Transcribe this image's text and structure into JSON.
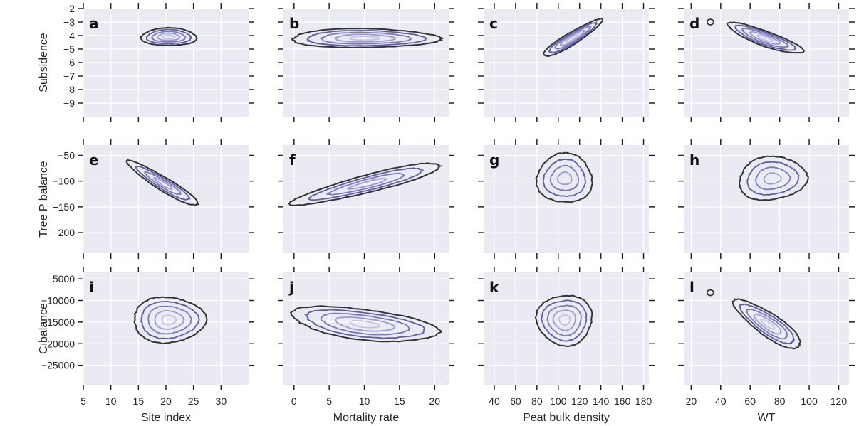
{
  "chart_data": {
    "type": "kde_contour_grid",
    "colors": {
      "background": "#eaeaf2",
      "grid": "#ffffff",
      "outer_contour": "#333333",
      "inner_contours": [
        "#5e5ca8",
        "#7b79bd",
        "#9e9bd0",
        "#c4c2e3"
      ]
    },
    "x_axes": [
      {
        "label": "Site index",
        "lim": [
          5,
          35
        ],
        "ticks": [
          5,
          10,
          15,
          20,
          25,
          30
        ],
        "tick_labels": [
          "5",
          "10",
          "15",
          "20",
          "25",
          "30"
        ]
      },
      {
        "label": "Mortality rate",
        "lim": [
          -1.5,
          22
        ],
        "ticks": [
          0,
          5,
          10,
          15,
          20
        ],
        "tick_labels": [
          "0",
          "5",
          "10",
          "15",
          "20"
        ]
      },
      {
        "label": "Peat bulk density",
        "lim": [
          30,
          185
        ],
        "ticks": [
          40,
          60,
          80,
          100,
          120,
          140,
          160,
          180
        ],
        "tick_labels": [
          "40",
          "60",
          "80",
          "100",
          "120",
          "140",
          "160",
          "180"
        ]
      },
      {
        "label": "WT",
        "lim": [
          15,
          127
        ],
        "ticks": [
          20,
          40,
          60,
          80,
          100,
          120
        ],
        "tick_labels": [
          "20",
          "40",
          "60",
          "80",
          "100",
          "120"
        ]
      }
    ],
    "y_axes": [
      {
        "label": "Subsidence",
        "lim": [
          -10,
          -2
        ],
        "ticks": [
          -2,
          -3,
          -4,
          -5,
          -6,
          -7,
          -8,
          -9
        ],
        "tick_labels": [
          "−2",
          "−3",
          "−4",
          "−5",
          "−6",
          "−7",
          "−8",
          "−9"
        ]
      },
      {
        "label": "Tree P balance",
        "lim": [
          -240,
          -30
        ],
        "ticks": [
          -50,
          -100,
          -150,
          -200
        ],
        "tick_labels": [
          "−50",
          "−100",
          "−150",
          "−200"
        ]
      },
      {
        "label": "C balance",
        "lim": [
          -29500,
          -3500
        ],
        "ticks": [
          -5000,
          -10000,
          -15000,
          -20000,
          -25000
        ],
        "tick_labels": [
          "−5000",
          "−10000",
          "−15000",
          "−20000",
          "−25000"
        ]
      }
    ],
    "panels": [
      {
        "letter": "a",
        "row": 0,
        "col": 0,
        "center": [
          20.5,
          -4.1
        ],
        "half_width": [
          5,
          0.65
        ],
        "rotation": 0,
        "rings": 5
      },
      {
        "letter": "b",
        "row": 0,
        "col": 1,
        "center": [
          10,
          -4.2
        ],
        "half_width": [
          10.5,
          0.7
        ],
        "rotation": 0,
        "rings": 5
      },
      {
        "letter": "c",
        "row": 0,
        "col": 2,
        "center": [
          113,
          -4.2
        ],
        "half_width": [
          32,
          0.45
        ],
        "rotation": -0.55,
        "rings": 5
      },
      {
        "letter": "d",
        "row": 0,
        "col": 3,
        "center": [
          70,
          -4.2
        ],
        "half_width": [
          27,
          0.55
        ],
        "rotation": 0.35,
        "rings": 5,
        "outlier": [
          33,
          -3.0
        ]
      },
      {
        "letter": "e",
        "row": 1,
        "col": 0,
        "center": [
          19.5,
          -105
        ],
        "half_width": [
          7.5,
          13
        ],
        "rotation": 0.55,
        "rings": 4
      },
      {
        "letter": "f",
        "row": 1,
        "col": 1,
        "center": [
          10.5,
          -105
        ],
        "half_width": [
          11,
          17
        ],
        "rotation": -0.25,
        "rings": 4
      },
      {
        "letter": "g",
        "row": 1,
        "col": 2,
        "center": [
          106,
          -95
        ],
        "half_width": [
          26,
          48
        ],
        "rotation": 0,
        "rings": 4
      },
      {
        "letter": "h",
        "row": 1,
        "col": 3,
        "center": [
          75,
          -95
        ],
        "half_width": [
          23,
          42
        ],
        "rotation": -0.1,
        "rings": 4
      },
      {
        "letter": "i",
        "row": 2,
        "col": 0,
        "center": [
          20.5,
          -14500
        ],
        "half_width": [
          6.5,
          5300
        ],
        "rotation": 0,
        "rings": 5
      },
      {
        "letter": "j",
        "row": 2,
        "col": 1,
        "center": [
          10,
          -15500
        ],
        "half_width": [
          10.5,
          3500
        ],
        "rotation": 0.12,
        "rings": 5
      },
      {
        "letter": "k",
        "row": 2,
        "col": 2,
        "center": [
          106,
          -14500
        ],
        "half_width": [
          26,
          5800
        ],
        "rotation": 0,
        "rings": 5
      },
      {
        "letter": "l",
        "row": 2,
        "col": 3,
        "center": [
          72,
          -15500
        ],
        "half_width": [
          27,
          2600
        ],
        "rotation": 0.6,
        "rings": 5,
        "outlier": [
          33,
          -8200
        ]
      }
    ]
  }
}
